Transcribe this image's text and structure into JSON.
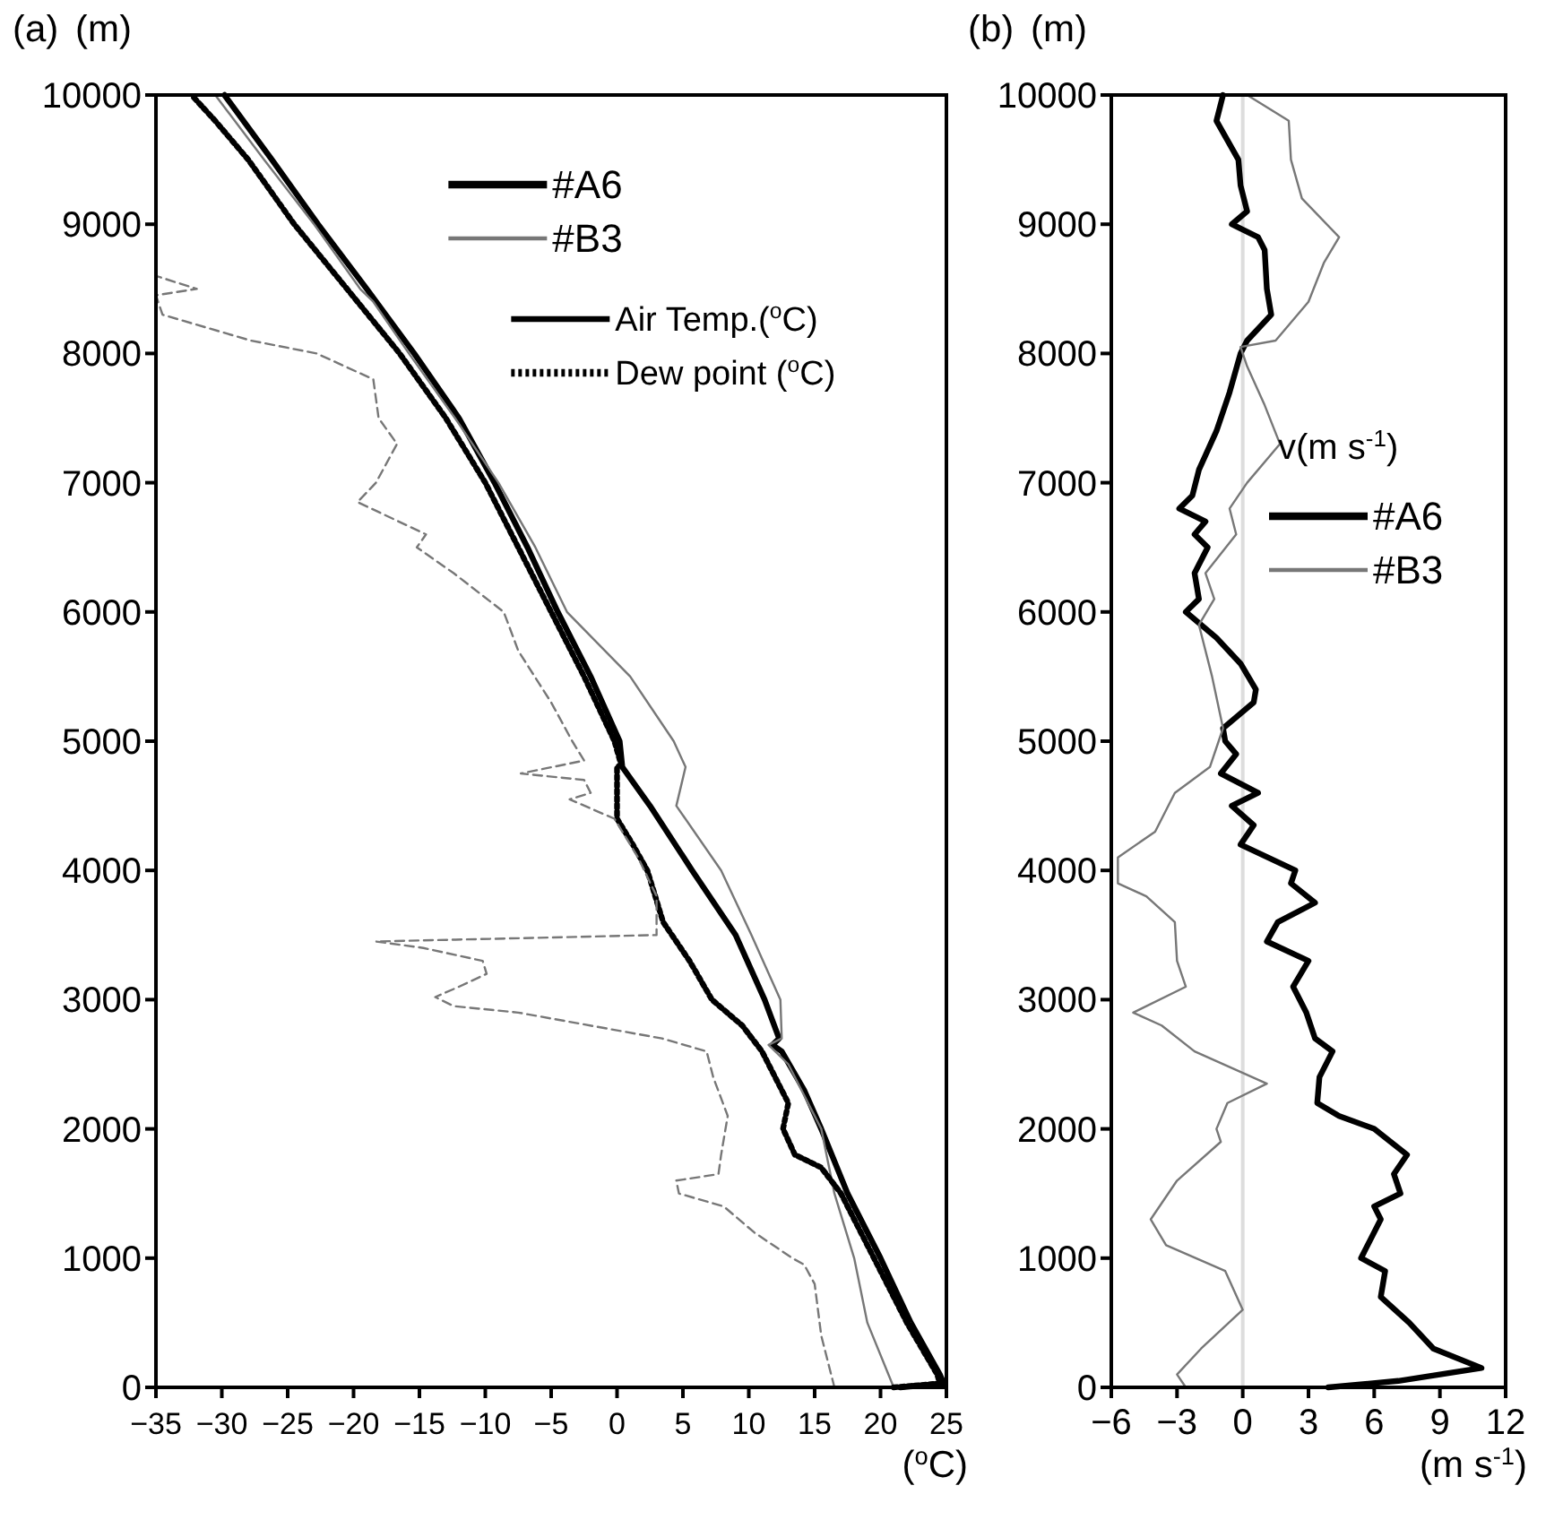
{
  "chart_data": [
    {
      "type": "line",
      "title": "(a)",
      "ylabel": "(m)",
      "xlabel": "($^{o}$C)",
      "xlim": [
        -35,
        25
      ],
      "xticks": [
        -35,
        -30,
        -25,
        -20,
        -15,
        -10,
        -5,
        0,
        5,
        10,
        15,
        20,
        25
      ],
      "ylim": [
        0,
        10000
      ],
      "yticks": [
        0,
        1000,
        2000,
        3000,
        4000,
        5000,
        6000,
        7000,
        8000,
        9000,
        10000
      ],
      "grid": false,
      "legend": "top right",
      "marker": "none",
      "annotations": [
        "Air Temp.($^{o}$C)"
      ],
      "series": [
        {
          "name": "#A6",
          "color": "#000000",
          "line_style": "solid",
          "x": [
            21.5,
            24.8,
            24.5,
            22.3,
            20,
            17.5,
            15.5,
            14.2,
            12.5,
            11.8,
            12.3,
            11.2,
            9,
            5.7,
            2.5,
            0.4,
            0.2,
            -2,
            -4.5,
            -6.8,
            -9.3,
            -12,
            -15.4,
            -19,
            -22.7,
            -26.2,
            -29.8
          ],
          "values": [
            0,
            30,
            100,
            500,
            1000,
            1500,
            2000,
            2300,
            2600,
            2650,
            2700,
            3000,
            3500,
            4000,
            4500,
            4800,
            5000,
            5500,
            6000,
            6500,
            7000,
            7500,
            8000,
            8500,
            9000,
            9500,
            10000
          ]
        },
        {
          "name": "#B3",
          "color": "#777777",
          "line_style": "solid",
          "x": [
            21,
            19,
            18,
            16.5,
            15.5,
            13,
            11.5,
            12.5,
            12.4,
            10.2,
            7.9,
            4.5,
            5.2,
            4.3,
            1,
            -3.8,
            -6.2,
            -9,
            -12.3,
            -15.8,
            -18.5,
            -19.5,
            -23,
            -26.8,
            -30.5
          ],
          "values": [
            0,
            500,
            1000,
            1500,
            2000,
            2500,
            2650,
            2700,
            3000,
            3500,
            4000,
            4500,
            4800,
            5000,
            5500,
            6000,
            6500,
            7000,
            7500,
            8000,
            8400,
            8500,
            9000,
            9500,
            10000
          ]
        },
        {
          "name": "Dew point ($^{o}$C)",
          "color": "#000000",
          "line_style": "dotted",
          "x": [
            21,
            24.5,
            24.3,
            22,
            19.5,
            17,
            15.5,
            13.5,
            12.6,
            13,
            12,
            11,
            9.5,
            7.2,
            5.5,
            3.5,
            2.3,
            1.2,
            0,
            0,
            0.3,
            -0.2,
            -2.5,
            -5,
            -7.5,
            -10,
            -13,
            -16.5,
            -20.5,
            -24.5,
            -28,
            -30.5,
            -32.3
          ],
          "values": [
            0,
            30,
            100,
            500,
            1000,
            1500,
            1700,
            1800,
            2000,
            2200,
            2400,
            2600,
            2800,
            3000,
            3300,
            3600,
            4000,
            4200,
            4400,
            4800,
            4820,
            5000,
            5500,
            6000,
            6500,
            7000,
            7500,
            8000,
            8500,
            9000,
            9500,
            9800,
            10000
          ]
        },
        {
          "color": "#777777",
          "line_style": "dashed",
          "x": [
            16.5,
            15.5,
            15,
            14.2,
            13.3,
            10.4,
            8.1,
            4.7,
            4.5,
            7.7,
            7.9,
            8.4,
            7.3,
            6.8,
            3.4,
            -7.5,
            -12.4,
            -13.8,
            -12,
            -9.9,
            -10.2,
            -14.7,
            -18.3,
            3,
            3,
            3,
            1.6,
            -0.2,
            -3.6,
            -2,
            -2.5,
            -7.3,
            -2.5,
            -3.4,
            -5,
            -7.5,
            -8.6,
            -12.4,
            -15.2,
            -14.5,
            -19.7,
            -18.3,
            -16.7,
            -18.1,
            -18.5,
            -22.8,
            -27.8,
            -34.5,
            -35,
            -31.9,
            -35
          ],
          "values": [
            0,
            400,
            800,
            950,
            1000,
            1200,
            1400,
            1500,
            1600,
            1650,
            1800,
            2100,
            2400,
            2600,
            2700,
            2900,
            2950,
            3020,
            3100,
            3200,
            3300,
            3400,
            3450,
            3500,
            3600,
            3800,
            4100,
            4400,
            4550,
            4600,
            4700,
            4750,
            4850,
            5000,
            5300,
            5700,
            6000,
            6300,
            6500,
            6600,
            6850,
            7000,
            7300,
            7500,
            7800,
            8000,
            8100,
            8300,
            8450,
            8500,
            8600
          ]
        }
      ]
    },
    {
      "type": "line",
      "title": "(b)",
      "ylabel": "(m)",
      "xlabel": "(m s$^{-1}$)",
      "legend_title": "v(m s$^{-1}$)",
      "xlim": [
        -6,
        12
      ],
      "xticks": [
        -6,
        -3,
        0,
        3,
        6,
        9,
        12
      ],
      "ylim": [
        0,
        10000
      ],
      "yticks": [
        0,
        1000,
        2000,
        3000,
        4000,
        5000,
        6000,
        7000,
        8000,
        9000,
        10000
      ],
      "grid": false,
      "legend": "right",
      "marker": "none",
      "ref_lines": [
        {
          "axis": "x",
          "value": 0,
          "color": "#dddddd"
        }
      ],
      "series": [
        {
          "name": "#A6",
          "color": "#000000",
          "line_style": "solid",
          "x": [
            3.9,
            7.1,
            10.9,
            8.7,
            7.6,
            6.3,
            6.4,
            6.5,
            5.4,
            6.3,
            6,
            7.2,
            6.9,
            7.5,
            6,
            4.4,
            3.4,
            3.5,
            4.1,
            3.3,
            2.9,
            2.3,
            3,
            1.1,
            1.6,
            3.3,
            2.2,
            2.4,
            -0.1,
            0.5,
            -0.5,
            0.7,
            -1,
            -0.3,
            -0.8,
            -0.9,
            0.5,
            0.6,
            -0.1,
            -1.2,
            -2.6,
            -2,
            -2.2,
            -1.6,
            -2.2,
            -1.7,
            -2.9,
            -2.3,
            -2,
            -1.2,
            -0.6,
            -0.1,
            0.2,
            1.3,
            1.1,
            1,
            0.7,
            -0.5,
            0.2,
            -0.1,
            -0.2,
            -1.2,
            -0.9
          ],
          "values": [
            0,
            50,
            150,
            300,
            500,
            700,
            800,
            900,
            1000,
            1300,
            1400,
            1500,
            1650,
            1800,
            2000,
            2100,
            2200,
            2400,
            2600,
            2700,
            2900,
            3100,
            3300,
            3450,
            3600,
            3750,
            3900,
            4000,
            4200,
            4350,
            4500,
            4600,
            4750,
            4900,
            5000,
            5100,
            5300,
            5400,
            5600,
            5800,
            6000,
            6100,
            6300,
            6500,
            6600,
            6700,
            6800,
            6900,
            7100,
            7400,
            7700,
            8000,
            8100,
            8300,
            8500,
            8800,
            8900,
            9000,
            9100,
            9300,
            9500,
            9800,
            10000
          ]
        },
        {
          "name": "#B3",
          "color": "#777777",
          "line_style": "solid",
          "x": [
            -2.6,
            -3,
            -1.9,
            0,
            -0.8,
            -3.5,
            -4.2,
            -3,
            -1,
            -1.2,
            -0.7,
            1.1,
            -2.2,
            -3.7,
            -5,
            -2.6,
            -3,
            -3.1,
            -4.4,
            -5.7,
            -5.7,
            -4,
            -3.1,
            -1.5,
            -1.1,
            -0.9,
            -1.4,
            -2,
            -1.3,
            -1.7,
            -0.3,
            -0.6,
            0.2,
            1.7,
            1,
            0.2,
            -0.1,
            1.5,
            3,
            3.7,
            4.4,
            2.7,
            2.2,
            2.1,
            0.2
          ],
          "values": [
            0,
            100,
            300,
            600,
            900,
            1100,
            1300,
            1600,
            1900,
            2000,
            2200,
            2350,
            2600,
            2800,
            2900,
            3100,
            3300,
            3600,
            3800,
            3900,
            4100,
            4300,
            4600,
            4800,
            5000,
            5100,
            5500,
            5900,
            6100,
            6300,
            6600,
            6800,
            7000,
            7300,
            7600,
            7900,
            8050,
            8100,
            8400,
            8700,
            8900,
            9200,
            9500,
            9800,
            10000
          ]
        }
      ]
    }
  ]
}
